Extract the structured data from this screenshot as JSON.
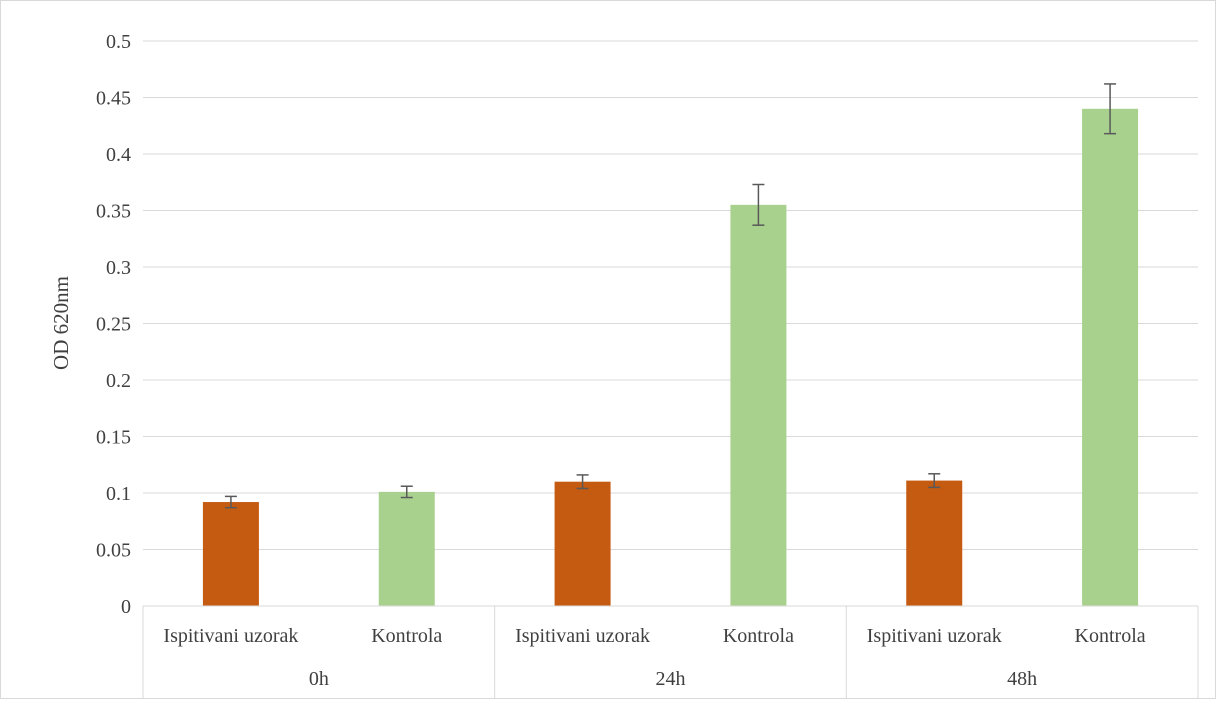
{
  "chart_data": {
    "type": "bar",
    "title": "",
    "ylabel": "OD 620nm",
    "xlabel": "",
    "ylim": [
      0,
      0.5
    ],
    "yticks": [
      "0",
      "0.05",
      "0.1",
      "0.15",
      "0.2",
      "0.25",
      "0.3",
      "0.35",
      "0.4",
      "0.45",
      "0.5"
    ],
    "grid": true,
    "legend": "none",
    "groups": [
      {
        "label": "0h",
        "bars": [
          {
            "label": "Ispitivani uzorak",
            "value": 0.092,
            "error": 0.005,
            "color": "#c55a11"
          },
          {
            "label": "Kontrola",
            "value": 0.101,
            "error": 0.005,
            "color": "#a9d18e"
          }
        ]
      },
      {
        "label": "24h",
        "bars": [
          {
            "label": "Ispitivani uzorak",
            "value": 0.11,
            "error": 0.006,
            "color": "#c55a11"
          },
          {
            "label": "Kontrola",
            "value": 0.355,
            "error": 0.018,
            "color": "#a9d18e"
          }
        ]
      },
      {
        "label": "48h",
        "bars": [
          {
            "label": "Ispitivani uzorak",
            "value": 0.111,
            "error": 0.006,
            "color": "#c55a11"
          },
          {
            "label": "Kontrola",
            "value": 0.44,
            "error": 0.022,
            "color": "#a9d18e"
          }
        ]
      }
    ]
  }
}
